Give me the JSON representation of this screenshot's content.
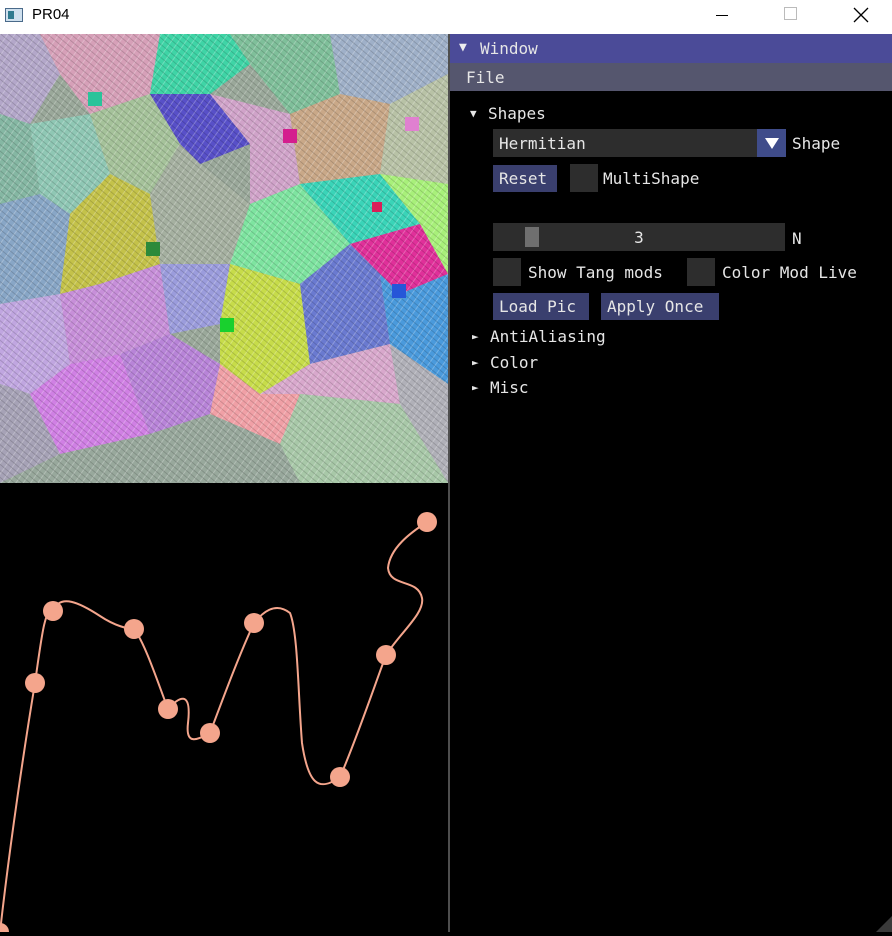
{
  "window": {
    "title": "PR04"
  },
  "panel": {
    "title": "Window",
    "menu": {
      "file": "File"
    },
    "shapes": {
      "header": "Shapes",
      "shape_combo": {
        "value": "Hermitian",
        "label": "Shape"
      },
      "reset_label": "Reset",
      "multishape_label": "MultiShape",
      "n_slider": {
        "value": "3",
        "label": "N",
        "fraction": 0.06
      },
      "show_tang_label": "Show Tang mods",
      "color_mod_live_label": "Color Mod Live",
      "load_pic_label": "Load Pic",
      "apply_once_label": "Apply Once"
    },
    "sections": {
      "antialiasing": "AntiAliasing",
      "color": "Color",
      "misc": "Misc"
    }
  },
  "curve": {
    "color": "#f4a58c"
  },
  "colors": {
    "title_bar": "#4b4b98",
    "menu_bar": "#55566e",
    "button": "#3a3f6e",
    "frame": "#2d2d2d"
  }
}
